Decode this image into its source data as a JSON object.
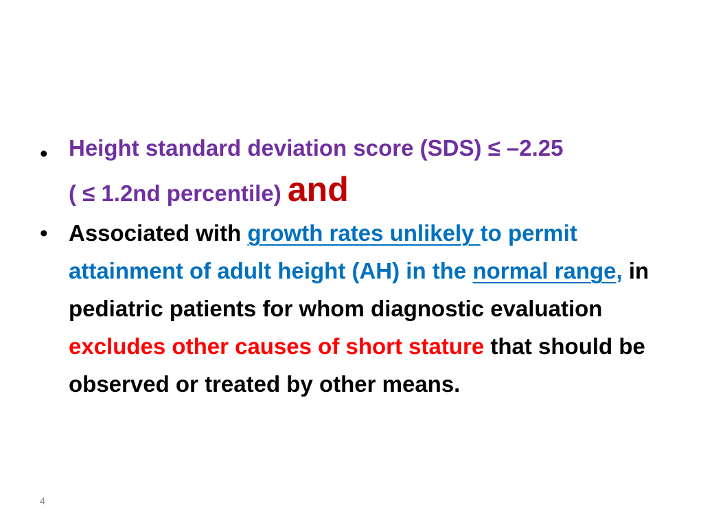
{
  "slide": {
    "bullet_symbol": "•",
    "bullet1": {
      "line1": "Height standard deviation score (SDS) ≤ –2.25",
      "line2": "( ≤ 1.2nd percentile)",
      "and": "and"
    },
    "bullet2": {
      "lead": " Associated with ",
      "link1": "growth rates unlikely ",
      "link1_tail": "to permit attainment of adult height (AH) in the",
      "link2": "normal range",
      "comma": ",",
      "mid": " in pediatric patients for whom diagnostic evaluation ",
      "red": "excludes other causes of short stature",
      "tail": " that should be observed or treated by other means."
    },
    "page_number": "4"
  },
  "colors": {
    "purple": "#7030a0",
    "dark_red": "#c00000",
    "blue": "#0070c0",
    "red": "#ff0000",
    "black": "#000000"
  }
}
